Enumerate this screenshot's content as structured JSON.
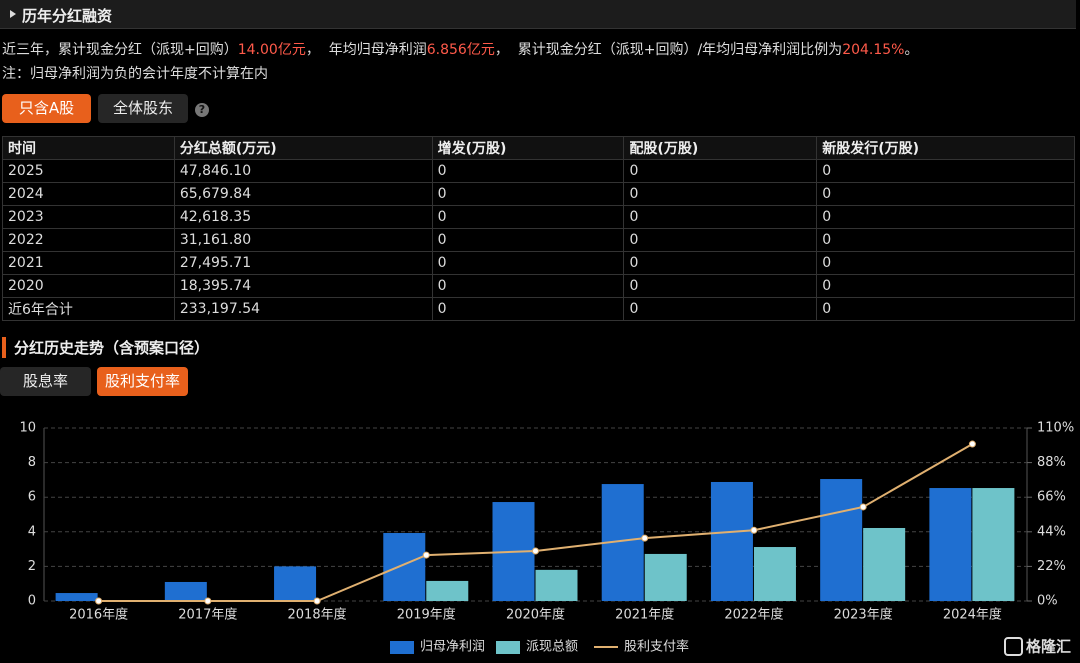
{
  "header": {
    "title": "历年分红融资"
  },
  "summary": [
    "近三年，累计现金分红（派现+回购）",
    "14.00亿元",
    "，  年均归母净利润",
    "6.856亿元",
    "，  累计现金分红（派现+回购）/年均归母净利润比例为",
    "204.15%",
    "。"
  ],
  "note": "注：归母净利润为负的会计年度不计算在内",
  "filter_buttons": [
    "只含A股",
    "全体股东"
  ],
  "help_icon": "?",
  "table": {
    "columns": [
      "时间",
      "分红总额(万元)",
      "增发(万股)",
      "配股(万股)",
      "新股发行(万股)"
    ],
    "rows": [
      [
        "2025",
        "47,846.10",
        "0",
        "0",
        "0"
      ],
      [
        "2024",
        "65,679.84",
        "0",
        "0",
        "0"
      ],
      [
        "2023",
        "42,618.35",
        "0",
        "0",
        "0"
      ],
      [
        "2022",
        "31,161.80",
        "0",
        "0",
        "0"
      ],
      [
        "2021",
        "27,495.71",
        "0",
        "0",
        "0"
      ],
      [
        "2020",
        "18,395.74",
        "0",
        "0",
        "0"
      ],
      [
        "近6年合计",
        "233,197.54",
        "0",
        "0",
        "0"
      ]
    ]
  },
  "section_title": "分红历史走势（含预案口径）",
  "chart_buttons": [
    "股息率",
    "股利支付率"
  ],
  "watermark": "格隆汇",
  "chart_data": {
    "type": "bar",
    "categories": [
      "2016年度",
      "2017年度",
      "2018年度",
      "2019年度",
      "2020年度",
      "2021年度",
      "2022年度",
      "2023年度",
      "2024年度"
    ],
    "series": [
      {
        "name": "归母净利润",
        "type": "bar",
        "color": "#1f6fd1",
        "values": [
          0.46,
          1.1,
          2.0,
          3.93,
          5.72,
          6.76,
          6.88,
          7.05,
          6.53
        ]
      },
      {
        "name": "派现总额",
        "type": "bar",
        "color": "#6ec3c9",
        "values": [
          0,
          0,
          0,
          1.16,
          1.8,
          2.72,
          3.12,
          4.22,
          6.53
        ]
      },
      {
        "name": "股利支付率",
        "type": "line",
        "axis": "y2",
        "color": "#e0b070",
        "values": [
          0,
          0,
          0,
          29.2,
          31.8,
          40,
          45,
          59.8,
          99.8
        ]
      }
    ],
    "ylim": [
      0,
      10
    ],
    "yticks": [
      0,
      2,
      4,
      6,
      8,
      10
    ],
    "y2lim": [
      0,
      110
    ],
    "y2ticks": [
      {
        "value": 0,
        "label": "0%"
      },
      {
        "value": 22,
        "label": "22%"
      },
      {
        "value": 44,
        "label": "44%"
      },
      {
        "value": 66,
        "label": "66%"
      },
      {
        "value": 88,
        "label": "88%"
      },
      {
        "value": 110,
        "label": "110%"
      }
    ],
    "grid": true
  }
}
